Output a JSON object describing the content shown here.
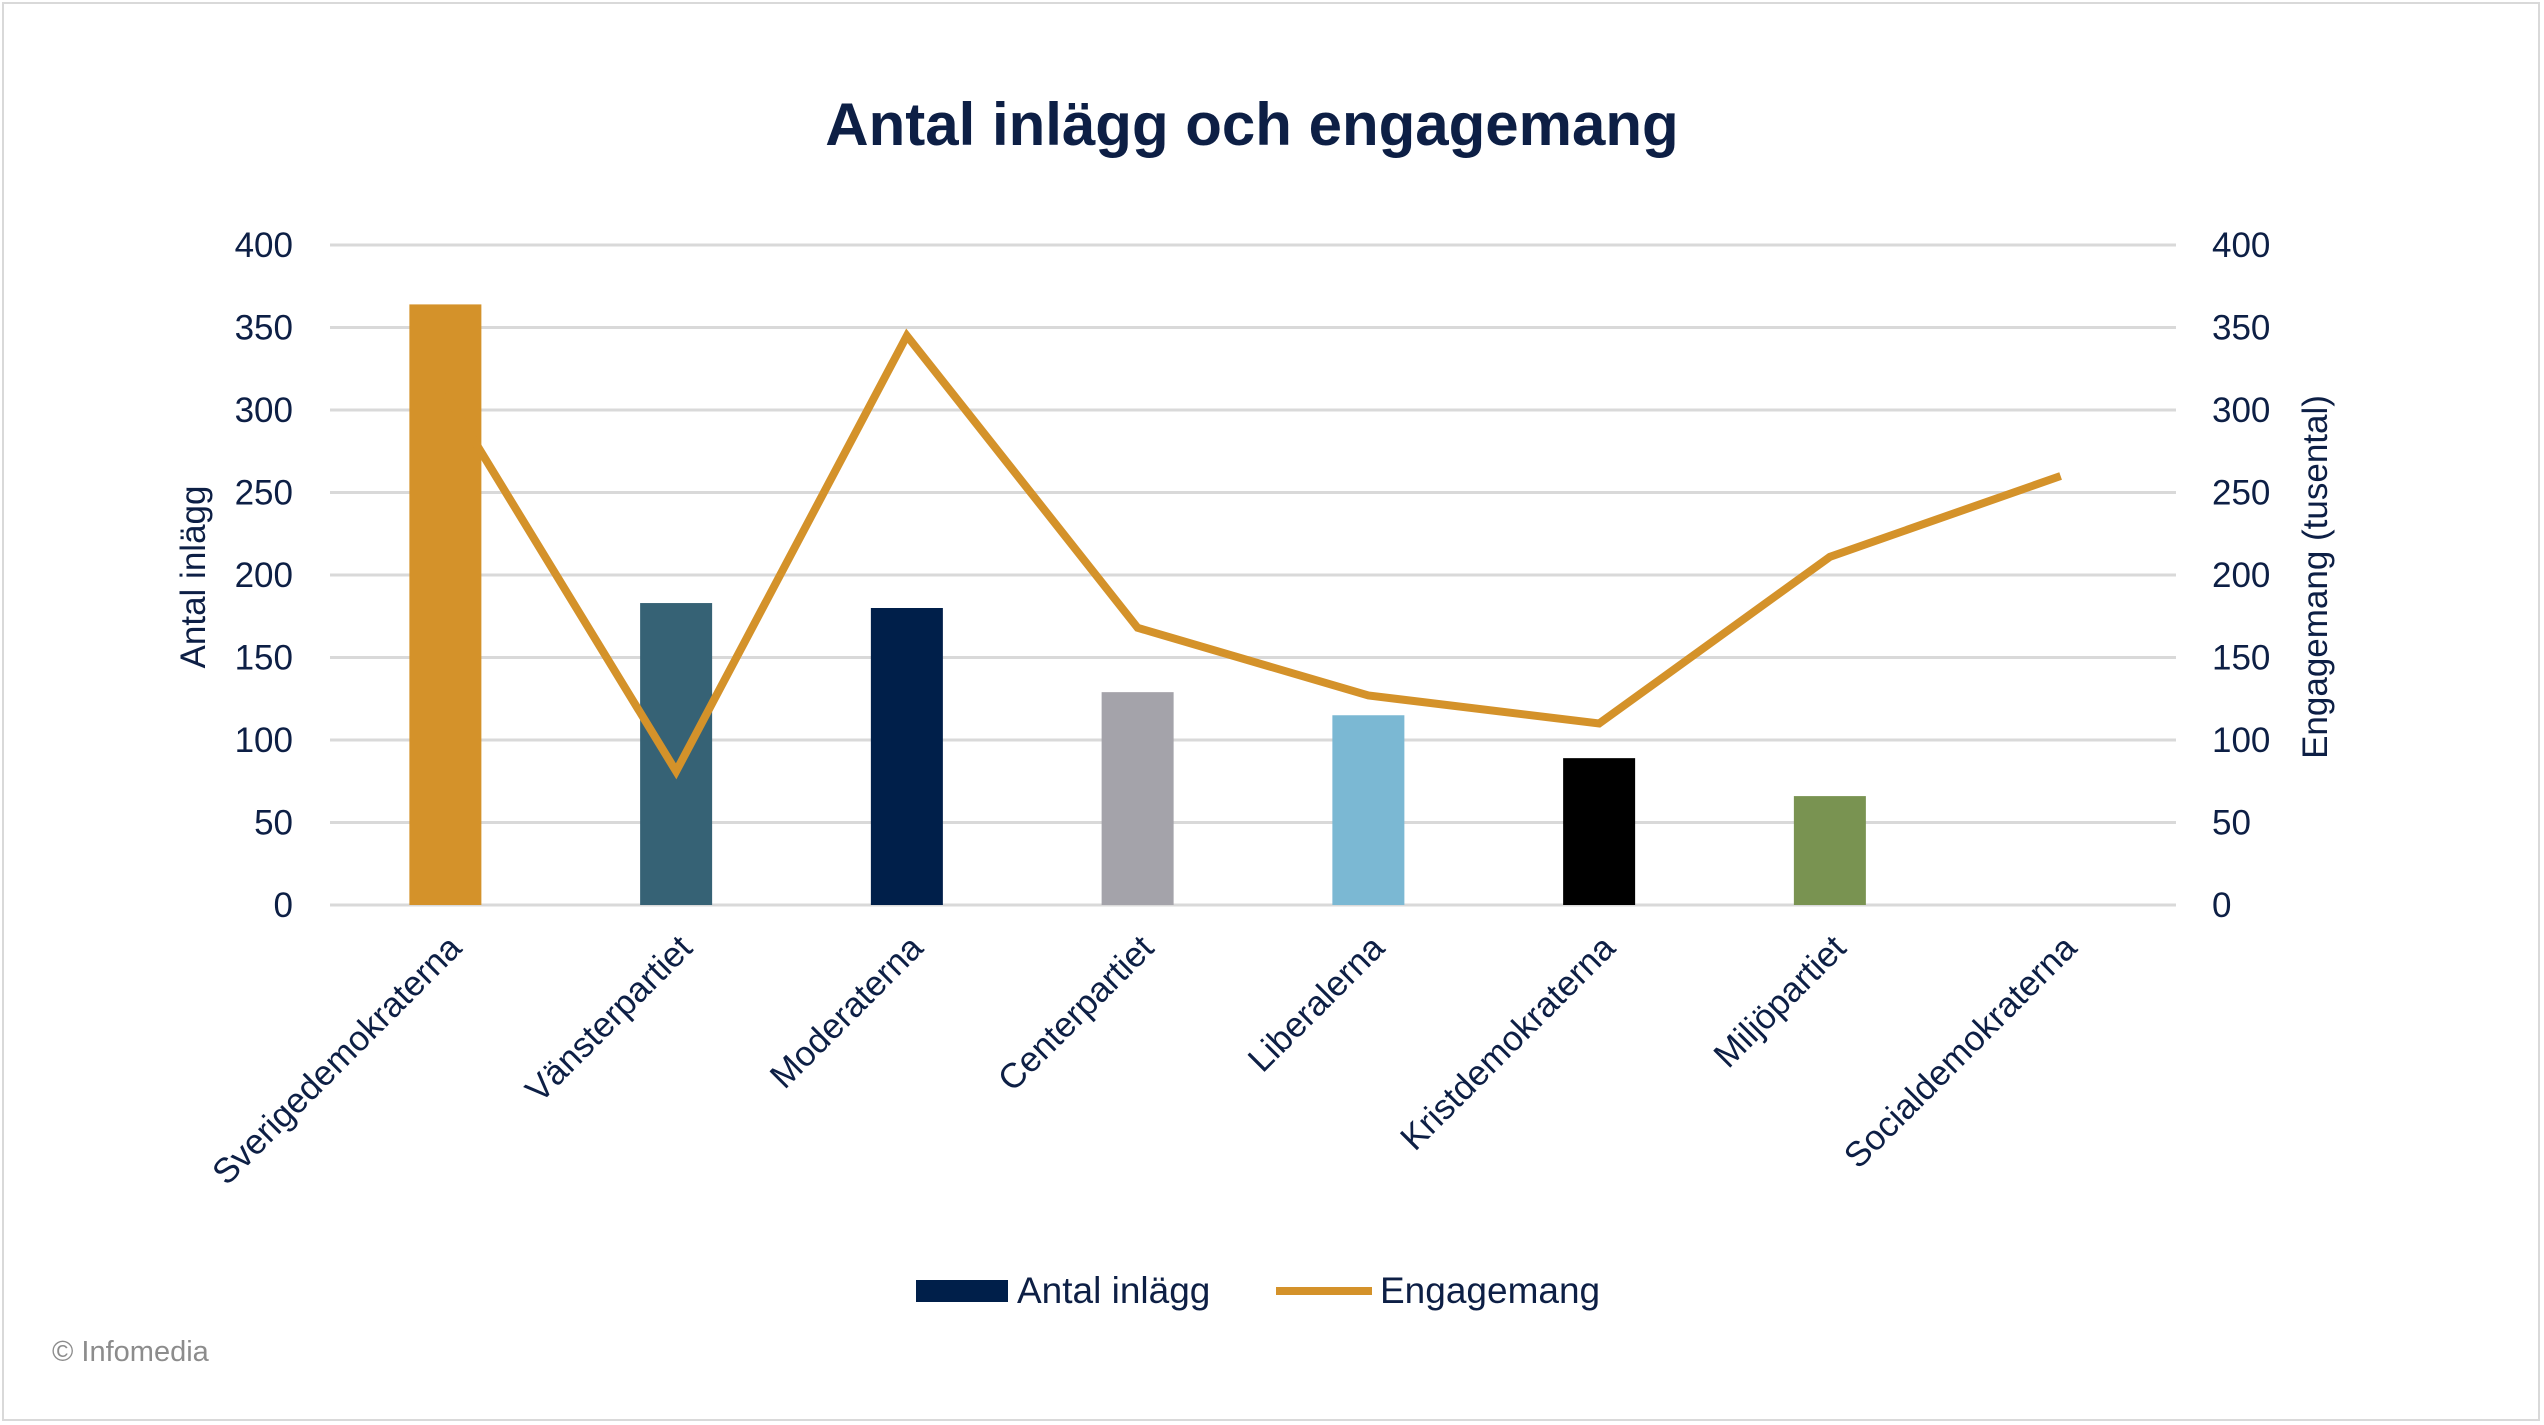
{
  "chart_data": {
    "type": "bar",
    "title": "Antal inlägg och engagemang",
    "categories": [
      "Sverigedemokraterna",
      "Vänsterpartiet",
      "Moderaterna",
      "Centerpartiet",
      "Liberalerna",
      "Kristdemokraterna",
      "Miljöpartiet",
      "Socialdemokraterna"
    ],
    "series": [
      {
        "name": "Antal inlägg",
        "type": "bar",
        "axis": "left",
        "values": [
          364,
          183,
          180,
          129,
          115,
          89,
          66,
          0
        ],
        "colors": [
          "#d4922a",
          "#366275",
          "#001f4a",
          "#a4a3aa",
          "#7bb8d3",
          "#000000",
          "#799351",
          "#d4922a"
        ],
        "legend_color": "#001f4a"
      },
      {
        "name": "Engagemang",
        "type": "line",
        "axis": "right",
        "values": [
          310,
          81,
          345,
          168,
          127,
          110,
          211,
          260
        ],
        "color": "#d4922a"
      }
    ],
    "ylabel": "Antal inlägg",
    "y2label": "Engagemang (tusental)",
    "ylim": [
      0,
      400
    ],
    "y2lim": [
      0,
      400
    ],
    "yticks": [
      0,
      50,
      100,
      150,
      200,
      250,
      300,
      350,
      400
    ],
    "grid": true,
    "legend_position": "bottom",
    "text_color": "#0d1f45",
    "grid_color": "#d9d9d9"
  },
  "footer": {
    "copyright": "© Infomedia"
  }
}
